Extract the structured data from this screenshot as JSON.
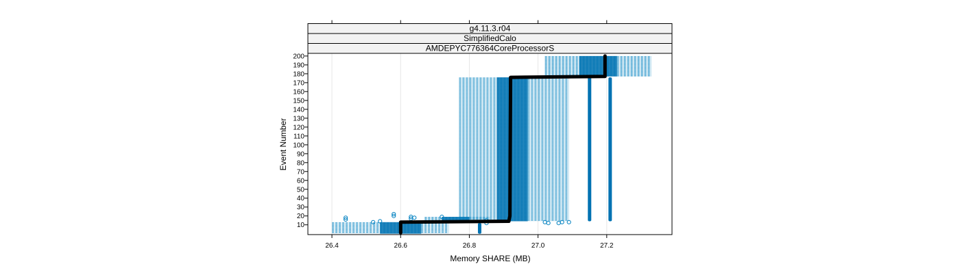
{
  "chart_data": {
    "type": "scatter",
    "strips": [
      "g4.11.3.r04",
      "SimplifiedCalo",
      "AMDEPYC776364CoreProcessorS"
    ],
    "xlabel": "Memory SHARE (MB)",
    "ylabel": "Event Number",
    "xlim": [
      26.33,
      27.39
    ],
    "ylim": [
      -1,
      203
    ],
    "xticks": [
      26.4,
      26.6,
      26.8,
      27.0,
      27.2
    ],
    "xtick_labels": [
      "26.4",
      "26.6",
      "26.8",
      "27.0",
      "27.2"
    ],
    "yticks": [
      10,
      20,
      30,
      40,
      50,
      60,
      70,
      80,
      90,
      100,
      110,
      120,
      130,
      140,
      150,
      160,
      170,
      180,
      190,
      200
    ],
    "grid": true,
    "colors": {
      "points": "#0080c0",
      "dense": "#0072b2",
      "median": "#000000",
      "strip_bg": "#f2f2f2"
    },
    "bands": [
      {
        "x_from": 26.4,
        "x_to": 26.74,
        "y_from": 0,
        "y_to": 13,
        "core_from": 26.54,
        "core_to": 26.66
      },
      {
        "x_from": 26.67,
        "x_to": 26.86,
        "y_from": 14,
        "y_to": 19,
        "core_from": 26.72,
        "core_to": 26.8
      },
      {
        "x_from": 26.77,
        "x_to": 27.09,
        "y_from": 14,
        "y_to": 176,
        "core_from": 26.88,
        "core_to": 26.97
      },
      {
        "x_from": 27.02,
        "x_to": 27.33,
        "y_from": 177,
        "y_to": 200,
        "core_from": 27.12,
        "core_to": 27.23
      }
    ],
    "columns": [
      {
        "x": 26.83,
        "y_from": 0,
        "y_to": 12
      },
      {
        "x": 27.15,
        "y_from": 14,
        "y_to": 176
      },
      {
        "x": 27.21,
        "y_from": 14,
        "y_to": 176
      }
    ],
    "median_path": [
      [
        26.6,
        1
      ],
      [
        26.6,
        13
      ],
      [
        26.915,
        14
      ],
      [
        26.918,
        20
      ],
      [
        26.92,
        176
      ],
      [
        27.195,
        177
      ],
      [
        27.195,
        200
      ]
    ],
    "outliers": [
      [
        26.44,
        16
      ],
      [
        26.44,
        18
      ],
      [
        26.52,
        13
      ],
      [
        26.54,
        14
      ],
      [
        26.58,
        20
      ],
      [
        26.58,
        22
      ],
      [
        26.63,
        17
      ],
      [
        26.63,
        19
      ],
      [
        26.64,
        18
      ],
      [
        26.72,
        19
      ],
      [
        26.85,
        15
      ],
      [
        26.85,
        12
      ],
      [
        27.02,
        13
      ],
      [
        27.03,
        12
      ],
      [
        27.07,
        13
      ],
      [
        27.06,
        12
      ],
      [
        27.09,
        13
      ]
    ]
  }
}
